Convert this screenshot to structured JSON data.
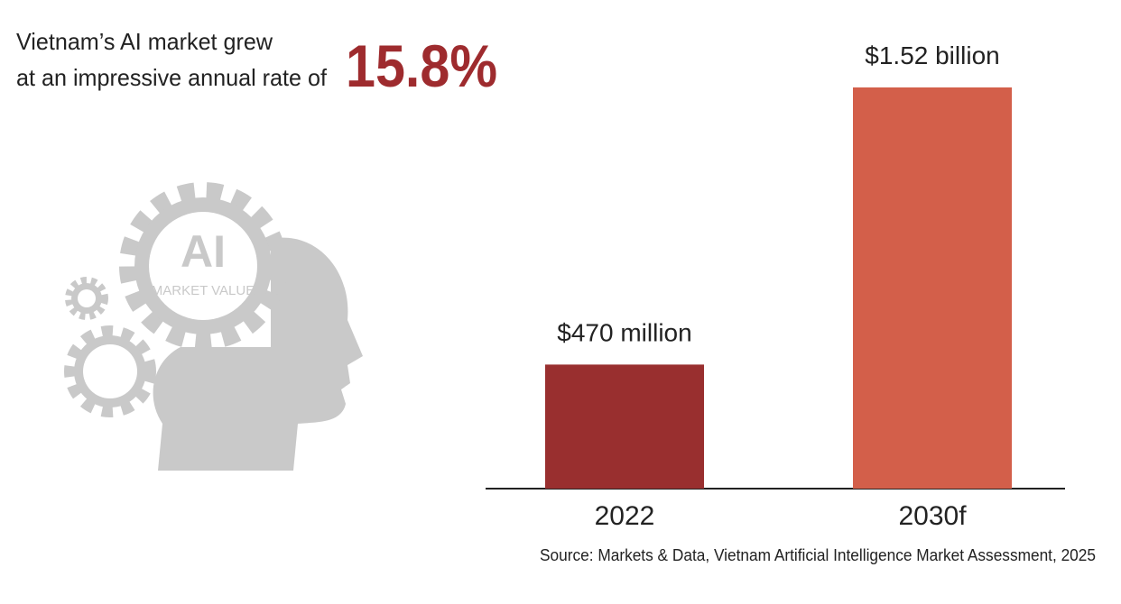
{
  "headline": {
    "line1": "Vietnam’s AI market grew",
    "line2": "at an impressive annual rate of",
    "rate": "15.8%"
  },
  "icon": {
    "title": "AI",
    "subtitle": "MARKET VALUE"
  },
  "chart_data": {
    "type": "bar",
    "categories": [
      "2022",
      "2030f"
    ],
    "values": [
      470000000,
      1520000000
    ],
    "value_labels": [
      "$470 million",
      "$1.52 billion"
    ],
    "colors": [
      "#992f2f",
      "#d35f4a"
    ]
  },
  "source": "Source: Markets & Data, Vietnam Artificial Intelligence Market Assessment, 2025"
}
